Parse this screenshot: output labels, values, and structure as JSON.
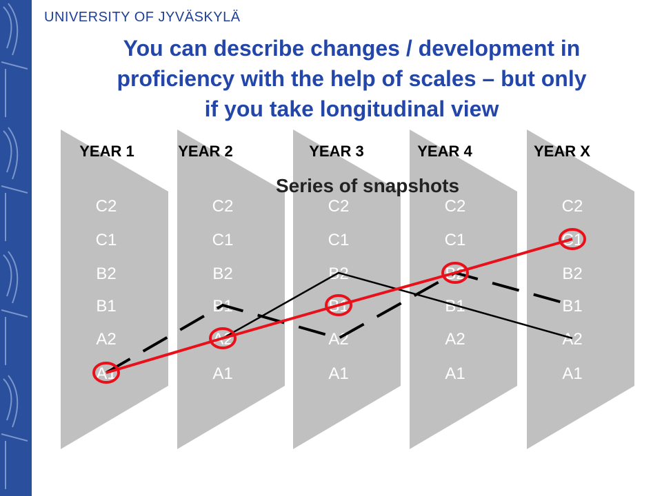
{
  "header": {
    "university": "UNIVERSITY OF JYVÄSKYLÄ",
    "title_lines": [
      "You can describe changes / development in",
      "proficiency with the help of scales – but only",
      "if you take longitudinal view"
    ]
  },
  "diagram": {
    "subtitle": "Series of snapshots",
    "years": [
      "YEAR 1",
      "YEAR 2",
      "YEAR 3",
      "YEAR 4",
      "YEAR X"
    ],
    "levels": [
      "C2",
      "C1",
      "B2",
      "B1",
      "A2",
      "A1"
    ],
    "lines": [
      {
        "style": "thin-black",
        "levels_per_year": [
          "A1",
          "A2",
          "B2",
          "B1",
          "A2"
        ]
      },
      {
        "style": "dashed-black",
        "levels_per_year": [
          "A1",
          "B1",
          "A2",
          "B2",
          "B1"
        ]
      },
      {
        "style": "red-circles",
        "levels_per_year": [
          "A1",
          "A2",
          "B1",
          "B2",
          "C1"
        ]
      }
    ],
    "colors": {
      "panel": "#c0c0c0",
      "panel_text": "#ffffff",
      "red": "#e8101a",
      "black": "#000000",
      "title": "#2346a8",
      "sidebar": "#2a4f9c"
    }
  }
}
